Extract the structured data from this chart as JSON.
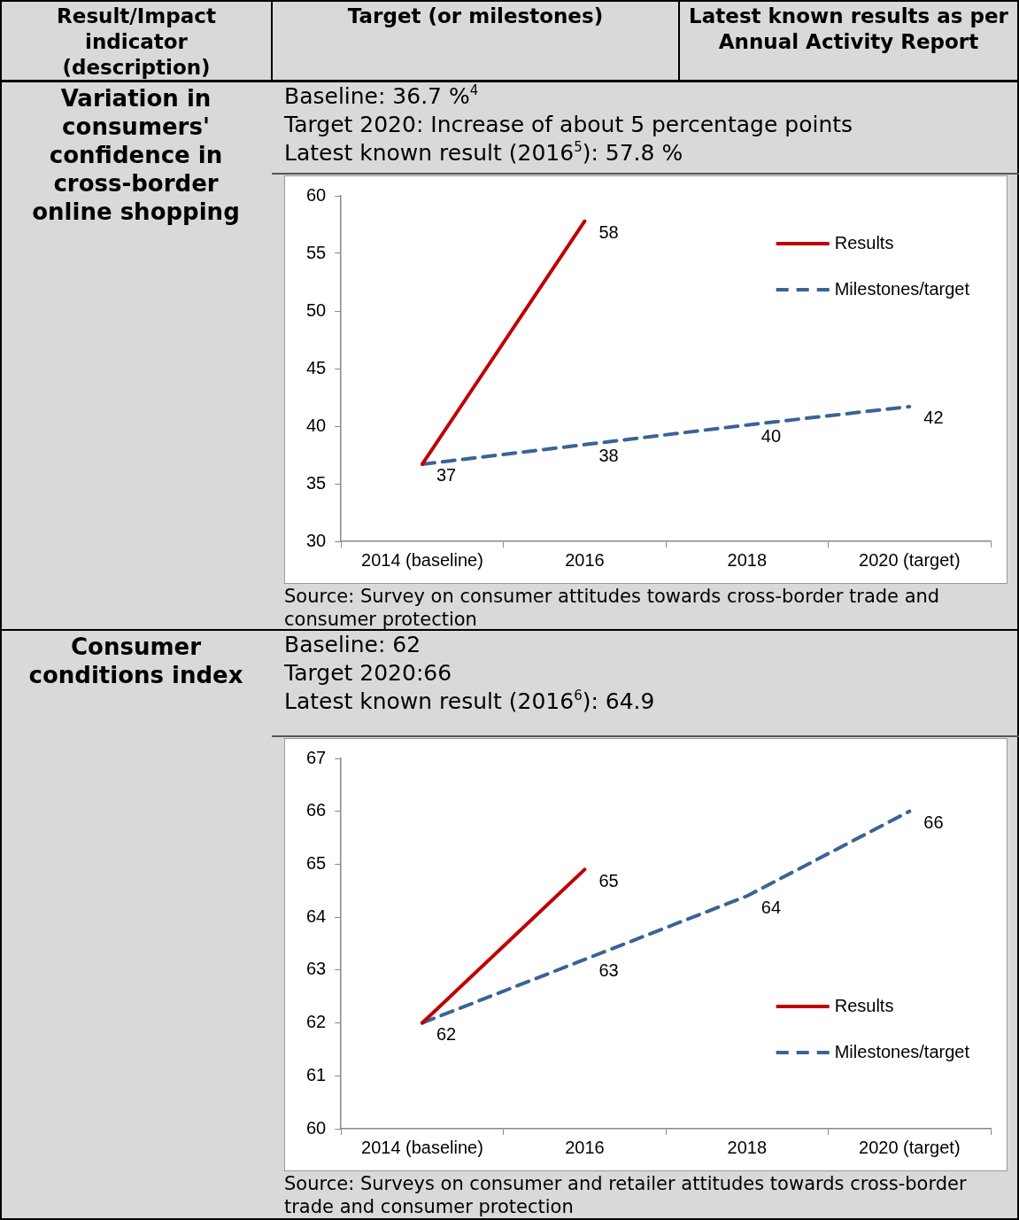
{
  "chart_data": [
    {
      "type": "other",
      "annotations": [
        "Result/Impact indicator (description)",
        "Target (or milestones)",
        "Latest known results as per Annual Activity Report"
      ]
    },
    {
      "type": "line",
      "title": "Variation in consumers' confidence in cross-border online shopping",
      "subtitle": "Baseline: 36.7 %$^{4}$\nTarget 2020: Increase of about 5 percentage points\nLatest known result (2016$^{5}$): 57.8 %",
      "annotations": [
        "Source: Survey on consumer attitudes towards cross-border trade and consumer protection"
      ],
      "categories": [
        "2014 (baseline)",
        "2016",
        "2018",
        "2020 (target)"
      ],
      "ylim": [
        30,
        60
      ],
      "yticks": [
        30,
        35,
        40,
        45,
        50,
        55,
        60
      ],
      "legend": "top right",
      "marker": "none",
      "series": [
        {
          "name": "Results",
          "color": "#c00000",
          "line_style": "solid",
          "values": [
            36.7,
            57.8,
            null,
            null
          ],
          "value_labels": [
            null,
            "58",
            null,
            null
          ]
        },
        {
          "name": "Milestones/target",
          "color": "#3b6396",
          "line_style": "dashed",
          "values": [
            36.7,
            38.4,
            40.1,
            41.7
          ],
          "value_labels": [
            "37",
            "38",
            "40",
            "42"
          ]
        }
      ]
    },
    {
      "type": "line",
      "title": "Consumer conditions index",
      "subtitle": "Baseline: 62\nTarget 2020:66\nLatest known result (2016$^{6}$): 64.9",
      "annotations": [
        "Source: Surveys on consumer and retailer attitudes towards cross-border trade and consumer protection"
      ],
      "categories": [
        "2014 (baseline)",
        "2016",
        "2018",
        "2020 (target)"
      ],
      "ylim": [
        60,
        67
      ],
      "yticks": [
        60,
        61,
        62,
        63,
        64,
        65,
        66,
        67
      ],
      "legend": "bottom right",
      "marker": "none",
      "series": [
        {
          "name": "Results",
          "color": "#c00000",
          "line_style": "solid",
          "values": [
            62,
            64.9,
            null,
            null
          ],
          "value_labels": [
            null,
            "65",
            null,
            null
          ]
        },
        {
          "name": "Milestones/target",
          "color": "#3b6396",
          "line_style": "dashed",
          "values": [
            62,
            63.2,
            64.4,
            66
          ],
          "value_labels": [
            "62",
            "63",
            "64",
            "66"
          ]
        }
      ]
    }
  ]
}
